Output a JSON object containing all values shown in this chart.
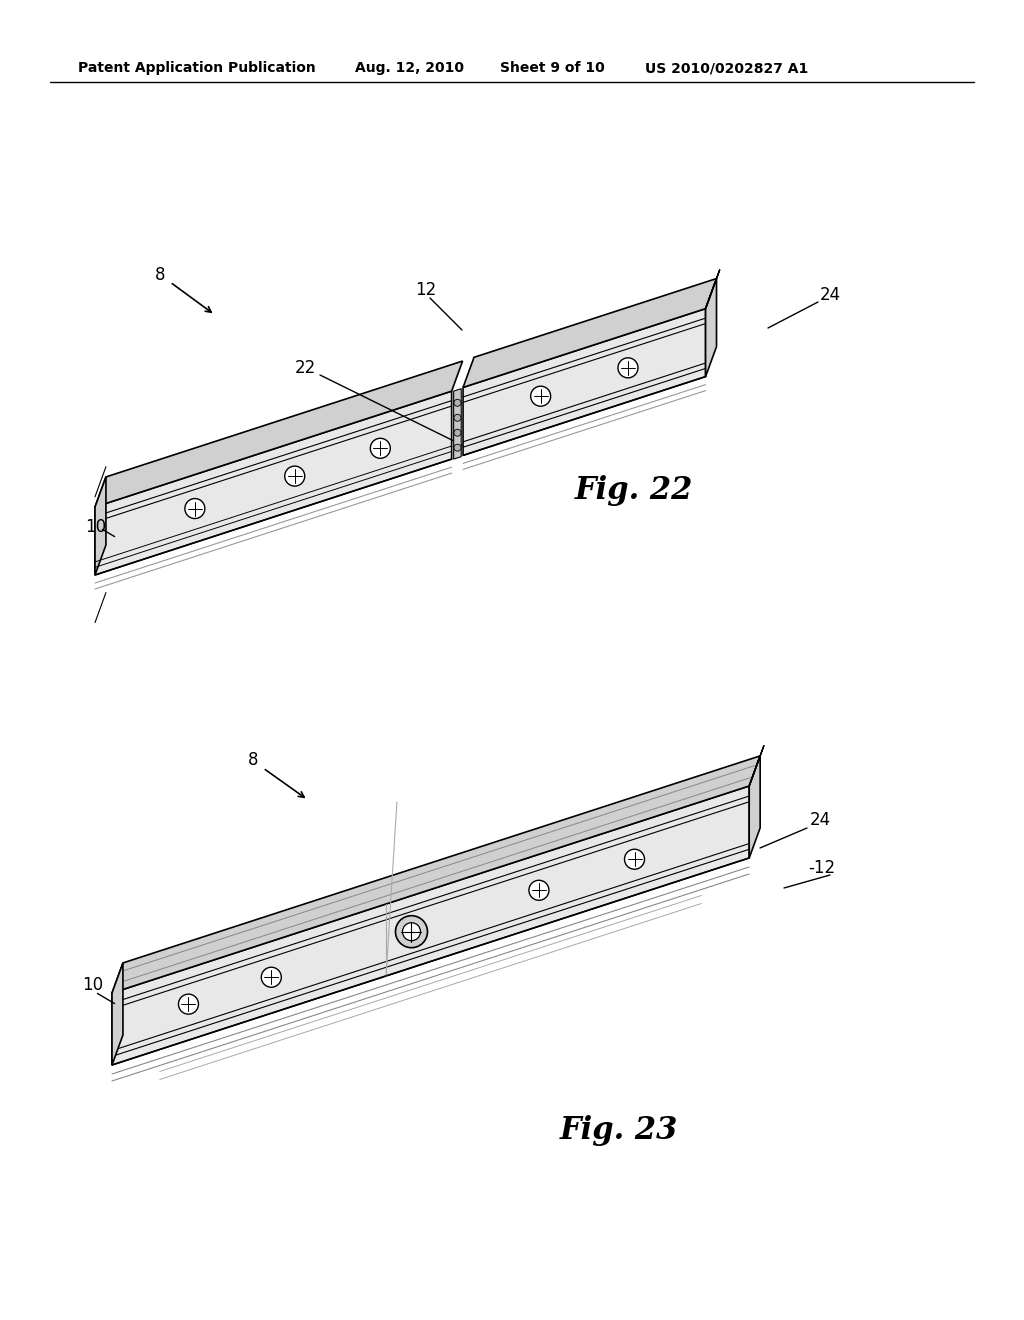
{
  "background_color": "#ffffff",
  "header_text": "Patent Application Publication",
  "header_date": "Aug. 12, 2010",
  "header_sheet": "Sheet 9 of 10",
  "header_patent": "US 2010/0202827 A1",
  "fig22_label": "Fig. 22",
  "fig23_label": "Fig. 23",
  "line_color": "#000000",
  "face_white": "#ffffff",
  "face_light": "#e8e8e8",
  "face_mid": "#d0d0d0",
  "face_dark": "#b0b0b0",
  "face_darker": "#888888"
}
